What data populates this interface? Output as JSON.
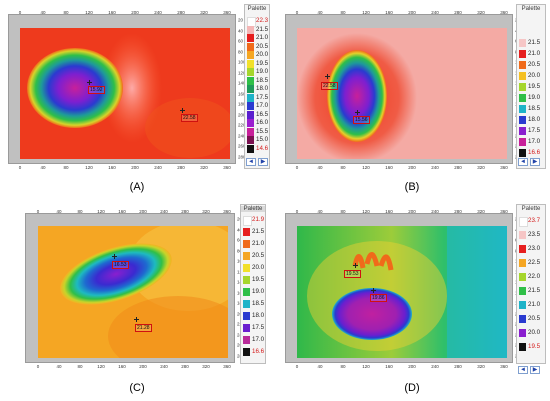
{
  "panels": [
    {
      "id": "A",
      "caption": "(A)",
      "palette_title": "Palette",
      "palette_values": [
        "22.3",
        "21.5",
        "21.0",
        "20.5",
        "20.0",
        "19.5",
        "19.0",
        "18.5",
        "18.0",
        "17.5",
        "17.0",
        "16.5",
        "16.0",
        "15.5",
        "15.0",
        "14.6"
      ],
      "x_ticks": [
        "0",
        "40",
        "80",
        "120",
        "160",
        "200",
        "240",
        "280",
        "320",
        "360"
      ],
      "y_ticks": [
        "20",
        "40",
        "60",
        "80",
        "100",
        "120",
        "140",
        "160",
        "180",
        "200",
        "220",
        "240",
        "260",
        "280"
      ],
      "markers": [
        "15.92",
        "22.58"
      ]
    },
    {
      "id": "B",
      "caption": "(B)",
      "palette_title": "Palette",
      "palette_values": [
        "21.5",
        "21.0",
        "20.5",
        "20.0",
        "19.5",
        "19.0",
        "18.5",
        "18.0",
        "17.5",
        "17.0",
        "16.6"
      ],
      "x_ticks": [
        "0",
        "40",
        "80",
        "120",
        "160",
        "200",
        "240",
        "280",
        "320",
        "360"
      ],
      "y_ticks": [
        "20",
        "40",
        "60",
        "80",
        "100",
        "120",
        "140",
        "160",
        "180",
        "200",
        "220",
        "240",
        "260",
        "280"
      ],
      "markers": [
        "22.58",
        "15.56"
      ]
    },
    {
      "id": "C",
      "caption": "(C)",
      "palette_title": "Palette",
      "palette_values": [
        "21.9",
        "21.5",
        "21.0",
        "20.5",
        "20.0",
        "19.5",
        "19.0",
        "18.5",
        "18.0",
        "17.5",
        "17.0",
        "16.6"
      ],
      "x_ticks": [
        "0",
        "40",
        "80",
        "120",
        "160",
        "200",
        "240",
        "280",
        "320",
        "360"
      ],
      "y_ticks": [
        "20",
        "40",
        "60",
        "80",
        "100",
        "120",
        "140",
        "160",
        "180",
        "200",
        "220",
        "240",
        "260",
        "280"
      ],
      "markers": [
        "16.53",
        "21.28"
      ]
    },
    {
      "id": "D",
      "caption": "(D)",
      "palette_title": "Palette",
      "palette_values": [
        "23.7",
        "23.5",
        "23.0",
        "22.5",
        "22.0",
        "21.5",
        "21.0",
        "20.5",
        "20.0",
        "19.5"
      ],
      "x_ticks": [
        "0",
        "40",
        "80",
        "120",
        "160",
        "200",
        "240",
        "280",
        "320",
        "360"
      ],
      "y_ticks": [
        "20",
        "40",
        "60",
        "80",
        "100",
        "120",
        "140",
        "160",
        "180",
        "200",
        "220",
        "240",
        "260",
        "280"
      ],
      "markers": [
        "19.53",
        "19.86"
      ]
    }
  ],
  "nav": {
    "left": "◄",
    "right": "▶"
  }
}
